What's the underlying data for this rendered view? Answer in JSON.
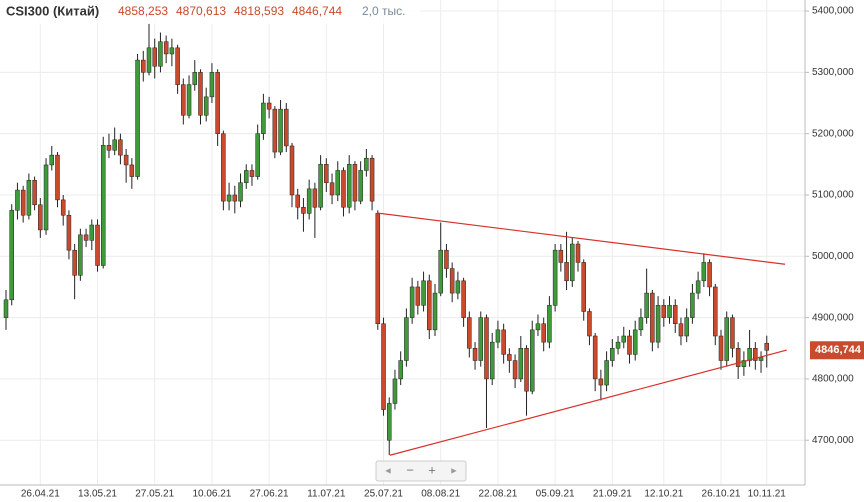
{
  "chart_data": {
    "type": "candlestick",
    "up_color": "#3f9a3a",
    "down_color": "#c94a2c",
    "grid": true,
    "header": {
      "name": "CSI300 (Китай)",
      "open": {
        "value": 4858.253,
        "label": "4858,253"
      },
      "high": {
        "value": 4870.613,
        "label": "4870,613"
      },
      "low": {
        "value": 4818.593,
        "label": "4818,593"
      },
      "close": {
        "value": 4846.744,
        "label": "4846,744"
      },
      "volume": "2,0 тыс."
    },
    "categories": [
      null,
      null,
      null,
      null,
      null,
      null,
      "26.04.21",
      null,
      null,
      null,
      null,
      null,
      null,
      null,
      null,
      null,
      "13.05.21",
      null,
      null,
      null,
      null,
      null,
      null,
      null,
      null,
      null,
      "27.05.21",
      null,
      null,
      null,
      null,
      null,
      null,
      null,
      null,
      null,
      "10.06.21",
      null,
      null,
      null,
      null,
      null,
      null,
      null,
      null,
      null,
      "27.06.21",
      null,
      null,
      null,
      null,
      null,
      null,
      null,
      null,
      null,
      "11.07.21",
      null,
      null,
      null,
      null,
      null,
      null,
      null,
      null,
      null,
      "25.07.21",
      null,
      null,
      null,
      null,
      null,
      null,
      null,
      null,
      null,
      "08.08.21",
      null,
      null,
      null,
      null,
      null,
      null,
      null,
      null,
      null,
      "22.08.21",
      null,
      null,
      null,
      null,
      null,
      null,
      null,
      null,
      null,
      "05.09.21",
      null,
      null,
      null,
      null,
      null,
      null,
      null,
      null,
      null,
      "21.09.21",
      null,
      null,
      null,
      null,
      null,
      null,
      null,
      null,
      "12.10.21",
      null,
      null,
      null,
      null,
      null,
      null,
      null,
      null,
      null,
      "26.10.21",
      null,
      null,
      null,
      null,
      null,
      null,
      null,
      "10.11.21"
    ],
    "series": [
      {
        "name": "CSI300 (Китай)",
        "open": [
          4900,
          4929,
          5075,
          5108,
          5067,
          5124,
          5084,
          5043,
          5149,
          5165,
          5092,
          5067,
          5010,
          4969,
          5035,
          5026,
          5051,
          4985,
          5181,
          5173,
          5190,
          5165,
          5149,
          5130,
          5320,
          5300,
          5340,
          5310,
          5350,
          5330,
          5340,
          5280,
          5230,
          5280,
          5300,
          5230,
          5260,
          5300,
          5200,
          5090,
          5100,
          5090,
          5120,
          5140,
          5130,
          5200,
          5250,
          5240,
          5170,
          5240,
          5180,
          5100,
          5080,
          5070,
          5110,
          5080,
          5150,
          5120,
          5100,
          5140,
          5080,
          5150,
          5090,
          5140,
          5160,
          5070,
          4890,
          4700,
          4760,
          4800,
          4830,
          4900,
          4950,
          4920,
          4960,
          4880,
          4940,
          5010,
          4980,
          4940,
          4960,
          4900,
          4850,
          4830,
          4900,
          4800,
          4860,
          4880,
          4840,
          4830,
          4800,
          4850,
          4780,
          4880,
          4890,
          4860,
          4920,
          5010,
          4990,
          4960,
          5020,
          4990,
          4910,
          4870,
          4800,
          4790,
          4830,
          4850,
          4860,
          4870,
          4840,
          4880,
          4900,
          4940,
          4860,
          4920,
          4900,
          4920,
          4890,
          4870,
          4900,
          4940,
          4960,
          4990,
          4950,
          4870,
          4830,
          4900,
          4850,
          4820,
          4830,
          4850,
          4830,
          4858.253
        ],
        "high": [
          4945,
          5085,
          5120,
          5115,
          5135,
          5130,
          5095,
          5160,
          5180,
          5170,
          5100,
          5075,
          5020,
          5045,
          5045,
          5060,
          5060,
          5195,
          5200,
          5210,
          5200,
          5175,
          5160,
          5330,
          5335,
          5380,
          5355,
          5365,
          5360,
          5355,
          5345,
          5290,
          5295,
          5320,
          5305,
          5275,
          5315,
          5305,
          5205,
          5120,
          5115,
          5135,
          5150,
          5150,
          5215,
          5265,
          5260,
          5245,
          5255,
          5250,
          5185,
          5110,
          5095,
          5125,
          5120,
          5165,
          5160,
          5135,
          5155,
          5145,
          5165,
          5155,
          5155,
          5175,
          5165,
          5075,
          4900,
          4770,
          4815,
          4845,
          4915,
          4965,
          4960,
          4975,
          4970,
          4955,
          5055,
          5020,
          4990,
          4975,
          4965,
          4910,
          4860,
          4910,
          4905,
          4875,
          4895,
          4890,
          4850,
          4840,
          4870,
          4855,
          4895,
          4905,
          4900,
          4935,
          5020,
          5020,
          5040,
          5030,
          5025,
          4995,
          4915,
          4875,
          4815,
          4845,
          4865,
          4870,
          4885,
          4880,
          4895,
          4915,
          4980,
          4945,
          4935,
          4930,
          4935,
          4930,
          4900,
          4915,
          4955,
          4975,
          5005,
          4995,
          4955,
          4880,
          4910,
          4905,
          4860,
          4845,
          4880,
          4860,
          4845,
          4870.613
        ],
        "low": [
          4880,
          4920,
          5060,
          5055,
          5060,
          5075,
          5030,
          5035,
          5140,
          5080,
          5050,
          4995,
          4930,
          4960,
          5015,
          5010,
          4975,
          4980,
          5160,
          5165,
          5150,
          5120,
          5110,
          5125,
          5285,
          5295,
          5290,
          5300,
          5315,
          5310,
          5265,
          5215,
          5225,
          5270,
          5215,
          5220,
          5250,
          5180,
          5075,
          5075,
          5070,
          5080,
          5110,
          5115,
          5125,
          5190,
          5225,
          5160,
          5165,
          5170,
          5080,
          5060,
          5040,
          5060,
          5030,
          5075,
          5105,
          5085,
          5090,
          5065,
          5070,
          5075,
          5085,
          5130,
          5075,
          4880,
          4740,
          4676,
          4750,
          4790,
          4820,
          4890,
          4905,
          4910,
          4865,
          4870,
          4935,
          4965,
          4925,
          4930,
          4885,
          4835,
          4815,
          4820,
          4720,
          4790,
          4850,
          4825,
          4810,
          4785,
          4795,
          4740,
          4775,
          4870,
          4845,
          4850,
          4910,
          4975,
          4945,
          4950,
          4975,
          4895,
          4855,
          4780,
          4765,
          4780,
          4820,
          4840,
          4850,
          4825,
          4830,
          4870,
          4890,
          4845,
          4850,
          4885,
          4890,
          4875,
          4855,
          4860,
          4890,
          4930,
          4950,
          4935,
          4855,
          4815,
          4820,
          4835,
          4800,
          4805,
          4820,
          4815,
          4810,
          4818.593
        ],
        "close": [
          4929,
          5075,
          5108,
          5067,
          5124,
          5084,
          5043,
          5149,
          5165,
          5092,
          5067,
          5010,
          4969,
          5035,
          5026,
          5051,
          4985,
          5181,
          5173,
          5190,
          5165,
          5149,
          5130,
          5320,
          5300,
          5340,
          5310,
          5350,
          5330,
          5340,
          5280,
          5230,
          5280,
          5300,
          5230,
          5260,
          5300,
          5200,
          5090,
          5100,
          5090,
          5120,
          5140,
          5130,
          5200,
          5250,
          5240,
          5170,
          5240,
          5180,
          5100,
          5080,
          5070,
          5110,
          5080,
          5150,
          5120,
          5100,
          5140,
          5080,
          5150,
          5090,
          5140,
          5160,
          5090,
          4890,
          4750,
          4760,
          4800,
          4830,
          4900,
          4950,
          4920,
          4960,
          4880,
          4940,
          5010,
          4980,
          4940,
          4960,
          4900,
          4850,
          4830,
          4900,
          4800,
          4860,
          4880,
          4840,
          4830,
          4800,
          4850,
          4780,
          4880,
          4890,
          4860,
          4920,
          5010,
          4990,
          4960,
          5020,
          4990,
          4910,
          4870,
          4800,
          4790,
          4830,
          4850,
          4860,
          4870,
          4840,
          4880,
          4900,
          4940,
          4860,
          4920,
          4900,
          4920,
          4890,
          4870,
          4900,
          4940,
          4960,
          4990,
          4950,
          4870,
          4830,
          4900,
          4850,
          4820,
          4830,
          4850,
          4830,
          4835,
          4846.744
        ]
      }
    ],
    "trendlines": [
      {
        "x": [
          65.0,
          136.2
        ],
        "y": [
          5070.5,
          4987
        ]
      },
      {
        "x": [
          67.1,
          136.5
        ],
        "y": [
          4675.5,
          4847
        ]
      }
    ],
    "ylim": [
      4627,
      5418
    ],
    "yticks": [
      {
        "value": 4700,
        "label": "4700,000"
      },
      {
        "value": 4800,
        "label": "4800,000"
      },
      {
        "value": 4900,
        "label": "4900,000"
      },
      {
        "value": 5000,
        "label": "5000,000"
      },
      {
        "value": 5100,
        "label": "5100,000"
      },
      {
        "value": 5200,
        "label": "5200,000"
      },
      {
        "value": 5300,
        "label": "5300,000"
      },
      {
        "value": 5400,
        "label": "5400,000"
      }
    ]
  }
}
